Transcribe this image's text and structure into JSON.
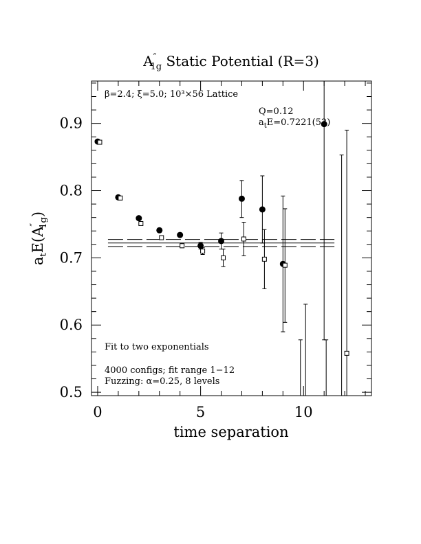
{
  "chart_data": {
    "type": "scatter",
    "title": "A″1g Static Potential (R=3)",
    "title_parts": {
      "main": "A",
      "prime": "″",
      "sub": "1g",
      "rest": " Static Potential (R=3)"
    },
    "xlabel": "time separation",
    "ylabel": "a",
    "ylabel_parts": {
      "a": "a",
      "t": "t",
      "E": "E(A",
      "prime": "″",
      "sub": "1g",
      "close": ")"
    },
    "xlim": [
      -0.3,
      13.3
    ],
    "ylim": [
      0.495,
      0.963
    ],
    "x_ticks": [
      0,
      5,
      10
    ],
    "x_tick_labels": [
      "0",
      "5",
      "10"
    ],
    "y_ticks": [
      0.5,
      0.6,
      0.7,
      0.8,
      0.9
    ],
    "y_tick_labels": [
      "0.5",
      "0.6",
      "0.7",
      "0.8",
      "0.9"
    ],
    "grid": false,
    "series": [
      {
        "marker": "filled-circle",
        "points": [
          {
            "x": 0,
            "y": 0.873,
            "lo": 0.871,
            "hi": 0.875
          },
          {
            "x": 1,
            "y": 0.79,
            "lo": 0.788,
            "hi": 0.792
          },
          {
            "x": 2,
            "y": 0.759,
            "lo": 0.757,
            "hi": 0.761
          },
          {
            "x": 3,
            "y": 0.741,
            "lo": 0.738,
            "hi": 0.744
          },
          {
            "x": 4,
            "y": 0.734,
            "lo": 0.731,
            "hi": 0.737
          },
          {
            "x": 5,
            "y": 0.718,
            "lo": 0.713,
            "hi": 0.723
          },
          {
            "x": 6,
            "y": 0.725,
            "lo": 0.713,
            "hi": 0.737
          },
          {
            "x": 7,
            "y": 0.788,
            "lo": 0.76,
            "hi": 0.815
          },
          {
            "x": 8,
            "y": 0.772,
            "lo": 0.722,
            "hi": 0.822
          },
          {
            "x": 9,
            "y": 0.691,
            "lo": 0.59,
            "hi": 0.792
          },
          {
            "x": 11,
            "y": 0.899,
            "lo": 0.578,
            "hi": 0.963
          }
        ]
      },
      {
        "marker": "open-square",
        "points": [
          {
            "x": 0.1,
            "y": 0.872,
            "lo": 0.87,
            "hi": 0.874
          },
          {
            "x": 1.1,
            "y": 0.789,
            "lo": 0.787,
            "hi": 0.791
          },
          {
            "x": 2.1,
            "y": 0.751,
            "lo": 0.749,
            "hi": 0.753
          },
          {
            "x": 3.1,
            "y": 0.73,
            "lo": 0.727,
            "hi": 0.733
          },
          {
            "x": 4.1,
            "y": 0.718,
            "lo": 0.715,
            "hi": 0.721
          },
          {
            "x": 5.1,
            "y": 0.71,
            "lo": 0.705,
            "hi": 0.715
          },
          {
            "x": 6.1,
            "y": 0.7,
            "lo": 0.687,
            "hi": 0.713
          },
          {
            "x": 7.1,
            "y": 0.728,
            "lo": 0.703,
            "hi": 0.753
          },
          {
            "x": 8.1,
            "y": 0.698,
            "lo": 0.654,
            "hi": 0.742
          },
          {
            "x": 9.1,
            "y": 0.689,
            "lo": 0.604,
            "hi": 0.773
          },
          {
            "x": 10.1,
            "y": null,
            "lo": 0.495,
            "hi": 0.631
          },
          {
            "x": 11.1,
            "y": null,
            "lo": 0.495,
            "hi": 0.578
          },
          {
            "x": 12.1,
            "y": 0.558,
            "lo": 0.495,
            "hi": 0.89
          }
        ]
      },
      {
        "marker": "none",
        "points": [
          {
            "x": 9.85,
            "y": null,
            "lo": 0.495,
            "hi": 0.578
          },
          {
            "x": 11.85,
            "y": null,
            "lo": 0.495,
            "hi": 0.853
          }
        ]
      }
    ],
    "fit": {
      "x_range": [
        1,
        12
      ],
      "value": 0.7221,
      "band": [
        0.7169,
        0.7273
      ]
    },
    "annotations": {
      "lattice": "β=2.4; ξ=5.0; 10³×56 Lattice",
      "q": "Q=0.12",
      "energy_prefix": "a",
      "energy_sub": "t",
      "energy_rest": "E=0.7221(52)",
      "fit_type": "Fit to two exponentials",
      "configs": "4000 configs; fit range 1−12",
      "fuzzing": "Fuzzing: α=0.25, 8 levels"
    }
  }
}
